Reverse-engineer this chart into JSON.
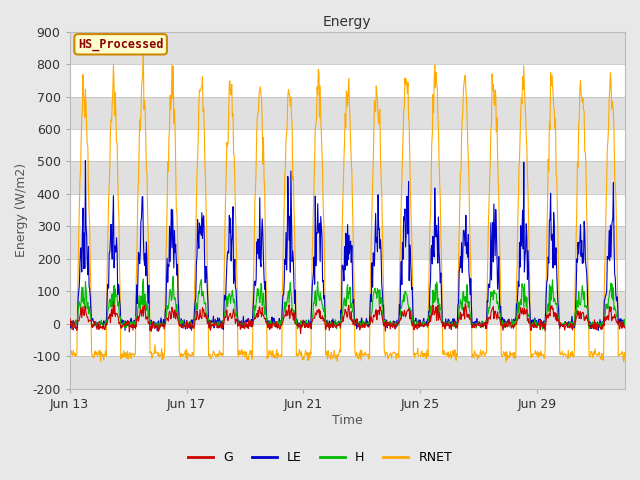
{
  "title": "Energy",
  "xlabel": "Time",
  "ylabel": "Energy (W/m2)",
  "ylim": [
    -200,
    900
  ],
  "yticks": [
    -200,
    -100,
    0,
    100,
    200,
    300,
    400,
    500,
    600,
    700,
    800,
    900
  ],
  "xtick_days": [
    13,
    17,
    21,
    25,
    29
  ],
  "xtick_labels": [
    "Jun 13",
    "Jun 17",
    "Jun 21",
    "Jun 25",
    "Jun 29"
  ],
  "colors": {
    "G": "#cc0000",
    "LE": "#0000cc",
    "H": "#00bb00",
    "RNET": "#ffaa00"
  },
  "legend_label": "HS_Processed",
  "legend_label_color": "#8b0000",
  "legend_box_facecolor": "#ffffcc",
  "legend_box_edge": "#cc8800",
  "bg_color": "#e8e8e8",
  "plot_bg_color": "#ffffff",
  "grid_color": "#d0d0d0",
  "stripe_color": "#e0e0e0",
  "n_days": 19,
  "points_per_day": 48,
  "title_fontsize": 10,
  "axis_fontsize": 9,
  "tick_fontsize": 9
}
